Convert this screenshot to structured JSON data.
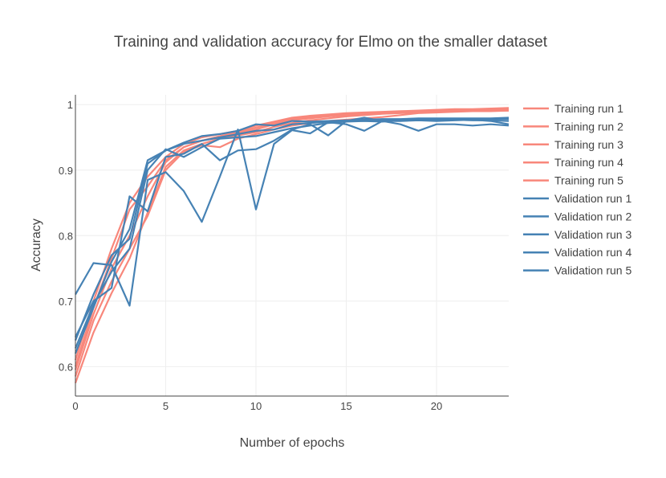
{
  "chart_data": {
    "type": "line",
    "title": "Training and validation accuracy for Elmo on the smaller dataset",
    "xlabel": "Number of epochs",
    "ylabel": "Accuracy",
    "xlim": [
      0,
      24
    ],
    "ylim": [
      0.555,
      1.015
    ],
    "xticks": [
      0,
      5,
      10,
      15,
      20
    ],
    "yticks": [
      0.6,
      0.7,
      0.8,
      0.9,
      1
    ],
    "ytick_labels": [
      "0.6",
      "0.7",
      "0.8",
      "0.9",
      "1"
    ],
    "grid": true,
    "legend_position": "right",
    "colors": {
      "training": "#f8877b",
      "validation": "#4682b4"
    },
    "x": [
      0,
      1,
      2,
      3,
      4,
      5,
      6,
      7,
      8,
      9,
      10,
      11,
      12,
      13,
      14,
      15,
      16,
      17,
      18,
      19,
      20,
      21,
      22,
      23,
      24
    ],
    "series": [
      {
        "name": "Training run 1",
        "group": "training",
        "values": [
          0.575,
          0.652,
          0.712,
          0.765,
          0.835,
          0.905,
          0.93,
          0.94,
          0.948,
          0.953,
          0.958,
          0.966,
          0.972,
          0.976,
          0.979,
          0.982,
          0.984,
          0.986,
          0.987,
          0.988,
          0.989,
          0.99,
          0.99,
          0.991,
          0.991
        ]
      },
      {
        "name": "Training run 2",
        "group": "training",
        "values": [
          0.595,
          0.68,
          0.75,
          0.8,
          0.86,
          0.912,
          0.935,
          0.945,
          0.95,
          0.956,
          0.962,
          0.97,
          0.976,
          0.979,
          0.982,
          0.984,
          0.986,
          0.987,
          0.988,
          0.989,
          0.99,
          0.991,
          0.992,
          0.992,
          0.993
        ]
      },
      {
        "name": "Training run 3",
        "group": "training",
        "values": [
          0.61,
          0.7,
          0.78,
          0.85,
          0.89,
          0.92,
          0.94,
          0.95,
          0.955,
          0.96,
          0.968,
          0.974,
          0.98,
          0.983,
          0.985,
          0.987,
          0.988,
          0.989,
          0.99,
          0.991,
          0.992,
          0.993,
          0.993,
          0.994,
          0.995
        ]
      },
      {
        "name": "Training run 4",
        "group": "training",
        "values": [
          0.585,
          0.67,
          0.73,
          0.78,
          0.83,
          0.9,
          0.928,
          0.938,
          0.935,
          0.948,
          0.955,
          0.962,
          0.968,
          0.972,
          0.975,
          0.977,
          0.979,
          0.981,
          0.984,
          0.987,
          0.988,
          0.989,
          0.99,
          0.99,
          0.991
        ]
      },
      {
        "name": "Training run 5",
        "group": "training",
        "values": [
          0.6,
          0.69,
          0.765,
          0.84,
          0.875,
          0.915,
          0.935,
          0.945,
          0.952,
          0.958,
          0.965,
          0.972,
          0.978,
          0.981,
          0.983,
          0.985,
          0.986,
          0.987,
          0.988,
          0.989,
          0.99,
          0.991,
          0.991,
          0.992,
          0.992
        ]
      },
      {
        "name": "Validation run 1",
        "group": "validation",
        "values": [
          0.71,
          0.758,
          0.755,
          0.693,
          0.885,
          0.897,
          0.868,
          0.821,
          0.89,
          0.962,
          0.84,
          0.94,
          0.961,
          0.956,
          0.973,
          0.97,
          0.96,
          0.975,
          0.97,
          0.96,
          0.97,
          0.97,
          0.968,
          0.97,
          0.968
        ]
      },
      {
        "name": "Validation run 2",
        "group": "validation",
        "values": [
          0.645,
          0.7,
          0.72,
          0.86,
          0.837,
          0.92,
          0.925,
          0.94,
          0.915,
          0.93,
          0.932,
          0.945,
          0.962,
          0.97,
          0.953,
          0.975,
          0.98,
          0.975,
          0.975,
          0.976,
          0.975,
          0.976,
          0.977,
          0.975,
          0.97
        ]
      },
      {
        "name": "Validation run 3",
        "group": "validation",
        "values": [
          0.62,
          0.69,
          0.76,
          0.81,
          0.915,
          0.93,
          0.942,
          0.952,
          0.955,
          0.96,
          0.97,
          0.968,
          0.975,
          0.974,
          0.975,
          0.976,
          0.975,
          0.974,
          0.976,
          0.977,
          0.978,
          0.977,
          0.976,
          0.976,
          0.975
        ]
      },
      {
        "name": "Validation run 4",
        "group": "validation",
        "values": [
          0.64,
          0.71,
          0.77,
          0.795,
          0.91,
          0.93,
          0.94,
          0.945,
          0.95,
          0.955,
          0.96,
          0.962,
          0.97,
          0.972,
          0.974,
          0.976,
          0.977,
          0.978,
          0.978,
          0.979,
          0.979,
          0.979,
          0.979,
          0.979,
          0.98
        ]
      },
      {
        "name": "Validation run 5",
        "group": "validation",
        "values": [
          0.628,
          0.695,
          0.745,
          0.78,
          0.9,
          0.932,
          0.92,
          0.935,
          0.948,
          0.95,
          0.952,
          0.958,
          0.964,
          0.968,
          0.972,
          0.974,
          0.975,
          0.976,
          0.976,
          0.977,
          0.977,
          0.977,
          0.978,
          0.978,
          0.978
        ]
      }
    ]
  }
}
